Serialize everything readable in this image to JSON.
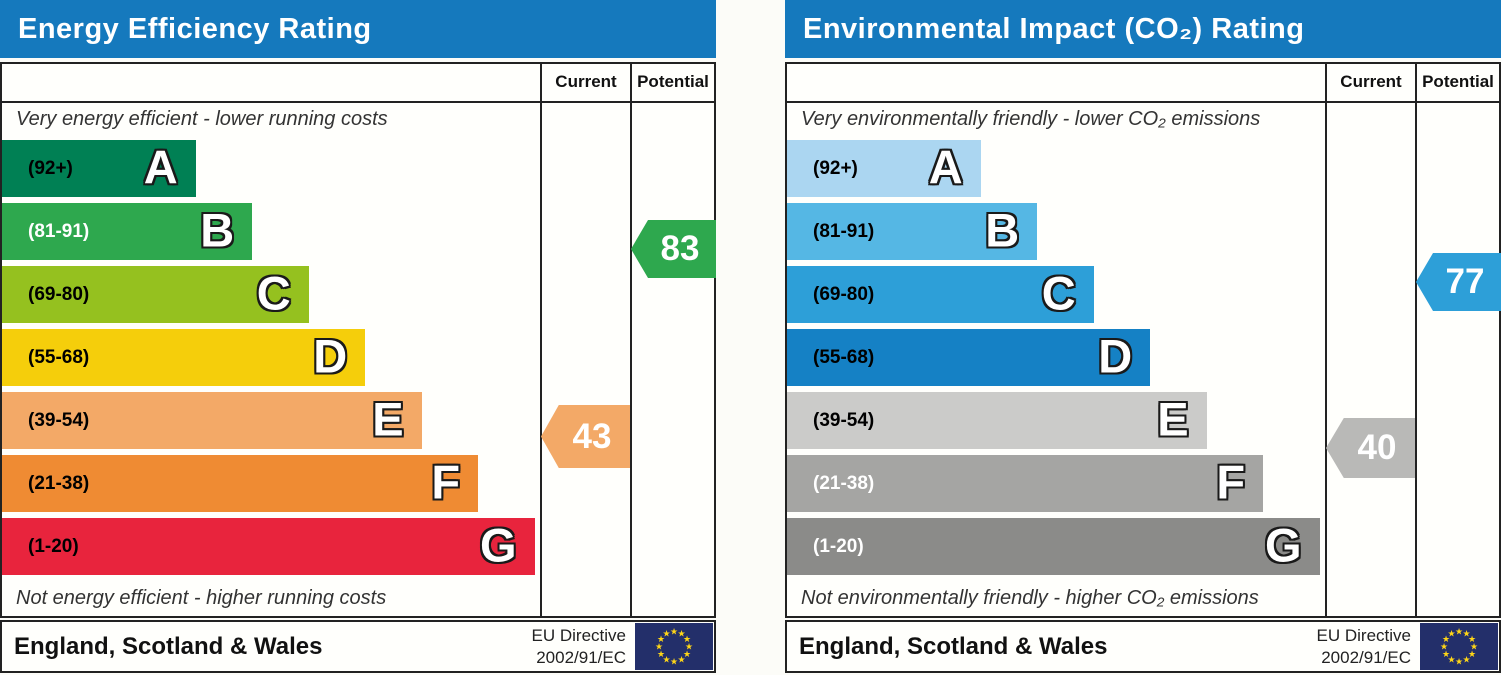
{
  "page_bg": "#fcfcf8",
  "charts": [
    {
      "title": "Energy Efficiency Rating",
      "title_bg": "#1579bd",
      "header": {
        "current": "Current",
        "potential": "Potential"
      },
      "top_caption": "Very energy efficient - lower running costs",
      "bottom_caption": "Not energy efficient - higher running costs",
      "bands": [
        {
          "letter": "A",
          "range": "(92+)",
          "color": "#008054",
          "text_color": "#000000",
          "width_pct": 36
        },
        {
          "letter": "B",
          "range": "(81-91)",
          "color": "#2ea84e",
          "text_color": "#ffffff",
          "width_pct": 46.5
        },
        {
          "letter": "C",
          "range": "(69-80)",
          "color": "#95c11f",
          "text_color": "#000000",
          "width_pct": 57
        },
        {
          "letter": "D",
          "range": "(55-68)",
          "color": "#f5ce0b",
          "text_color": "#000000",
          "width_pct": 67.5
        },
        {
          "letter": "E",
          "range": "(39-54)",
          "color": "#f3a967",
          "text_color": "#000000",
          "width_pct": 78
        },
        {
          "letter": "F",
          "range": "(21-38)",
          "color": "#ef8b33",
          "text_color": "#000000",
          "width_pct": 88.5
        },
        {
          "letter": "G",
          "range": "(1-20)",
          "color": "#e8243d",
          "text_color": "#000000",
          "width_pct": 99
        }
      ],
      "current": {
        "value": "43",
        "color": "#f3a967"
      },
      "potential": {
        "value": "83",
        "color": "#2ea84e"
      },
      "footer": {
        "region": "England, Scotland & Wales",
        "directive": [
          "EU Directive",
          "2002/91/EC"
        ]
      }
    },
    {
      "title": "Environmental Impact (CO₂) Rating",
      "title_bg": "#1579bd",
      "header": {
        "current": "Current",
        "potential": "Potential"
      },
      "top_caption": "Very environmentally friendly - lower CO₂ emissions",
      "bottom_caption": "Not environmentally friendly - higher CO₂ emissions",
      "bands": [
        {
          "letter": "A",
          "range": "(92+)",
          "color": "#abd6f1",
          "text_color": "#000000",
          "width_pct": 36
        },
        {
          "letter": "B",
          "range": "(81-91)",
          "color": "#55b7e4",
          "text_color": "#000000",
          "width_pct": 46.5
        },
        {
          "letter": "C",
          "range": "(69-80)",
          "color": "#2d9fd8",
          "text_color": "#000000",
          "width_pct": 57
        },
        {
          "letter": "D",
          "range": "(55-68)",
          "color": "#1581c5",
          "text_color": "#000000",
          "width_pct": 67.5
        },
        {
          "letter": "E",
          "range": "(39-54)",
          "color": "#cbcbc9",
          "text_color": "#000000",
          "width_pct": 78
        },
        {
          "letter": "F",
          "range": "(21-38)",
          "color": "#a5a5a3",
          "text_color": "#ffffff",
          "width_pct": 88.5
        },
        {
          "letter": "G",
          "range": "(1-20)",
          "color": "#8b8b89",
          "text_color": "#ffffff",
          "width_pct": 99
        }
      ],
      "current": {
        "value": "40",
        "color": "#b9b9b7"
      },
      "potential": {
        "value": "77",
        "color": "#2d9fd8"
      },
      "footer": {
        "region": "England, Scotland & Wales",
        "directive": [
          "EU Directive",
          "2002/91/EC"
        ]
      }
    }
  ],
  "chart_data": [
    {
      "type": "bar",
      "title": "Energy Efficiency Rating",
      "categories": [
        "A (92+)",
        "B (81-91)",
        "C (69-80)",
        "D (55-68)",
        "E (39-54)",
        "F (21-38)",
        "G (1-20)"
      ],
      "band_widths_pct": [
        36,
        46.5,
        57,
        67.5,
        78,
        88.5,
        99
      ],
      "current": 43,
      "current_band": "E",
      "potential": 83,
      "potential_band": "B",
      "scale_range": [
        1,
        100
      ],
      "region": "England, Scotland & Wales",
      "directive": "EU Directive 2002/91/EC"
    },
    {
      "type": "bar",
      "title": "Environmental Impact (CO₂) Rating",
      "categories": [
        "A (92+)",
        "B (81-91)",
        "C (69-80)",
        "D (55-68)",
        "E (39-54)",
        "F (21-38)",
        "G (1-20)"
      ],
      "band_widths_pct": [
        36,
        46.5,
        57,
        67.5,
        78,
        88.5,
        99
      ],
      "current": 40,
      "current_band": "E",
      "potential": 77,
      "potential_band": "C",
      "scale_range": [
        1,
        100
      ],
      "region": "England, Scotland & Wales",
      "directive": "EU Directive 2002/91/EC"
    }
  ]
}
